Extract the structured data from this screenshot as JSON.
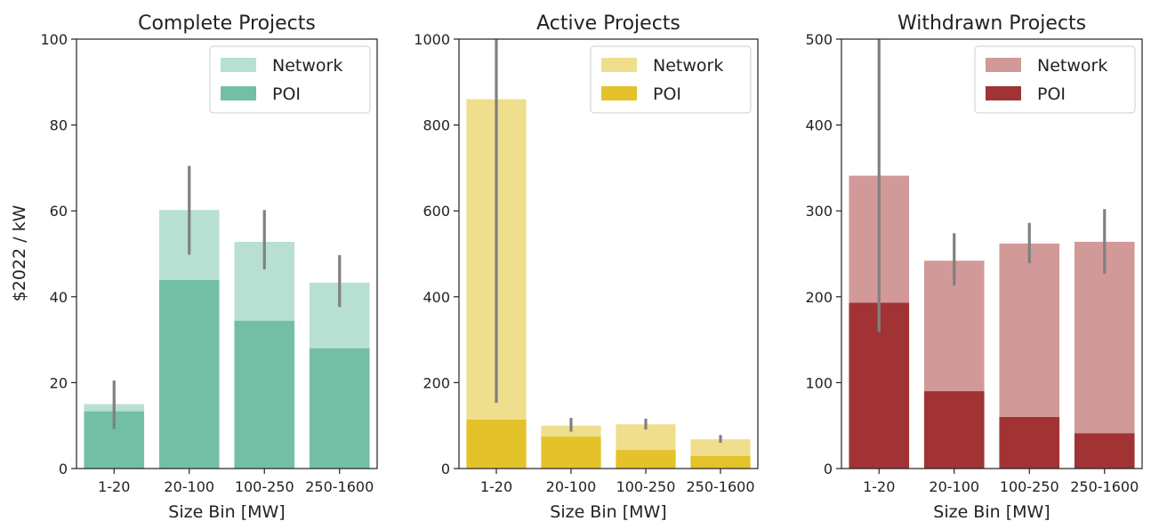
{
  "figure": {
    "ylabel": "$2022 / kW",
    "xlabel": "Size Bin [MW]"
  },
  "chart_data": [
    {
      "type": "bar",
      "title": "Complete Projects",
      "categories": [
        "1-20",
        "20-100",
        "100-250",
        "250-1600"
      ],
      "ylim": [
        0,
        100
      ],
      "yticks": [
        0,
        20,
        40,
        60,
        80,
        100
      ],
      "xlabel": "Size Bin [MW]",
      "ylabel": "$2022 / kW",
      "legend": "top-right",
      "series": [
        {
          "name": "Network",
          "color": "#b7e0d2",
          "values": [
            15.0,
            60.2,
            52.8,
            43.3
          ]
        },
        {
          "name": "POI",
          "color": "#73bfa5",
          "values": [
            13.3,
            43.9,
            34.4,
            28.0
          ]
        }
      ],
      "error_bars": [
        [
          9.2,
          20.5
        ],
        [
          49.8,
          70.5
        ],
        [
          46.4,
          60.2
        ],
        [
          37.6,
          49.7
        ]
      ]
    },
    {
      "type": "bar",
      "title": "Active Projects",
      "categories": [
        "1-20",
        "20-100",
        "100-250",
        "250-1600"
      ],
      "ylim": [
        0,
        1000
      ],
      "yticks": [
        0,
        200,
        400,
        600,
        800,
        1000
      ],
      "xlabel": "Size Bin [MW]",
      "ylabel": "",
      "legend": "top-right",
      "series": [
        {
          "name": "Network",
          "color": "#efde8c",
          "values": [
            860,
            100,
            103,
            68
          ]
        },
        {
          "name": "POI",
          "color": "#e4c229",
          "values": [
            114,
            74,
            43,
            29
          ]
        }
      ],
      "error_bars": [
        [
          153,
          1000
        ],
        [
          86,
          118
        ],
        [
          91,
          116
        ],
        [
          60,
          78
        ]
      ]
    },
    {
      "type": "bar",
      "title": "Withdrawn Projects",
      "categories": [
        "1-20",
        "20-100",
        "100-250",
        "250-1600"
      ],
      "ylim": [
        0,
        500
      ],
      "yticks": [
        0,
        100,
        200,
        300,
        400,
        500
      ],
      "xlabel": "Size Bin [MW]",
      "ylabel": "",
      "legend": "top-right",
      "series": [
        {
          "name": "Network",
          "color": "#d29999",
          "values": [
            341,
            242,
            262,
            264
          ]
        },
        {
          "name": "POI",
          "color": "#a13335",
          "values": [
            193,
            90,
            60,
            41
          ]
        }
      ],
      "error_bars": [
        [
          159,
          500
        ],
        [
          213,
          274
        ],
        [
          239,
          286
        ],
        [
          227,
          302
        ]
      ]
    }
  ]
}
